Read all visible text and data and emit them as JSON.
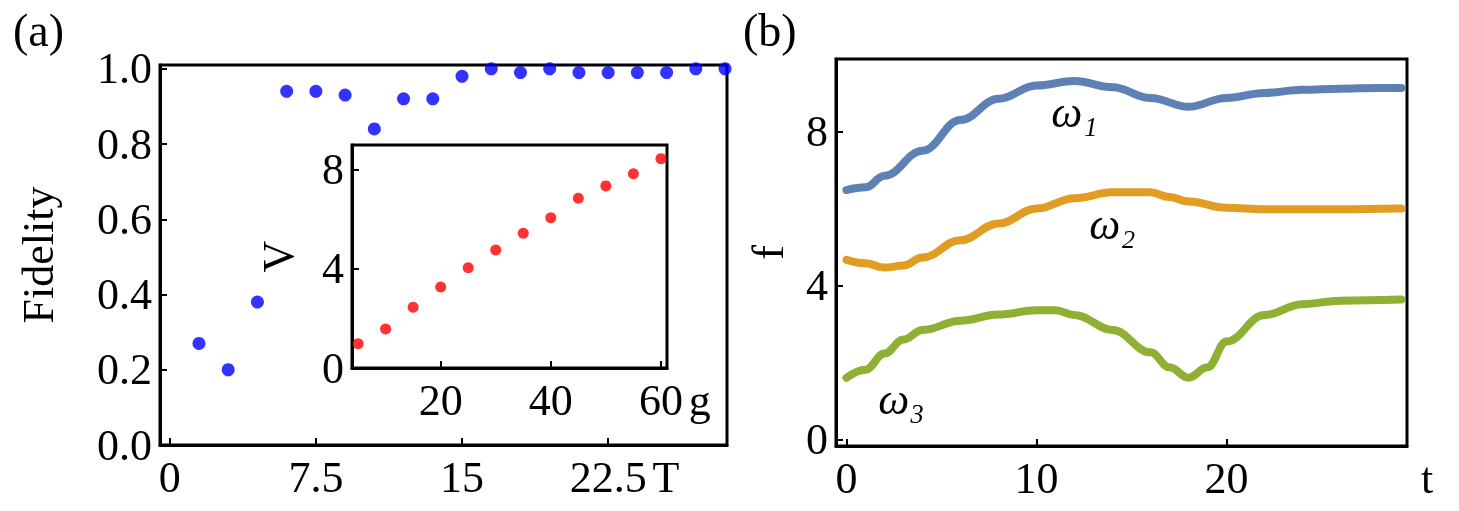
{
  "chart_data": [
    {
      "type": "scatter",
      "title": "(a)",
      "ylabel": "Fidelity",
      "xlabel": "T",
      "xlim": [
        -0.5,
        28.6
      ],
      "ylim": [
        0,
        1.01
      ],
      "xticks": [
        0,
        7.5,
        15,
        22.5
      ],
      "yticks": [
        {
          "value": 0,
          "label": "0.0"
        },
        0.2,
        0.4,
        0.6,
        0.8,
        {
          "value": 1,
          "label": "1.0"
        }
      ],
      "grid": false,
      "legend": false,
      "marker": "circle",
      "series": [
        {
          "color": "#0000ff",
          "x": [
            1.5,
            3,
            4.5,
            6,
            7.5,
            9,
            10.5,
            12,
            13.5,
            15,
            16.5,
            18,
            19.5,
            21,
            22.5,
            24,
            25.5,
            27,
            28.5
          ],
          "values": [
            0.27,
            0.2,
            0.38,
            0.94,
            0.94,
            0.93,
            0.84,
            0.92,
            0.92,
            0.98,
            1.0,
            0.99,
            1.0,
            0.99,
            0.99,
            0.99,
            0.99,
            1.0,
            1.0
          ]
        }
      ]
    },
    {
      "type": "scatter",
      "ylabel": "V",
      "xlabel": "g",
      "xlim": [
        3.9,
        61.1
      ],
      "ylim": [
        0,
        9
      ],
      "xticks": [
        20,
        40,
        60
      ],
      "yticks": [
        0,
        4,
        8
      ],
      "grid": false,
      "legend": false,
      "marker": "circle",
      "series": [
        {
          "color": "#ff0000",
          "x": [
            5,
            10,
            15,
            20,
            25,
            30,
            35,
            40,
            45,
            50,
            55,
            60
          ],
          "values": [
            0.98,
            1.57,
            2.45,
            3.27,
            4.05,
            4.76,
            5.44,
            6.06,
            6.85,
            7.35,
            7.84,
            8.45
          ]
        }
      ]
    },
    {
      "type": "line",
      "title": "(b)",
      "ylabel": "f",
      "xlabel": "t",
      "xlim": [
        -0.55,
        29.5
      ],
      "ylim": [
        -0.16,
        9.88
      ],
      "xticks": [
        0,
        10,
        20
      ],
      "yticks": [
        0,
        4,
        8
      ],
      "grid": false,
      "legend": false,
      "marker": "none",
      "line_style": "solid",
      "series": [
        {
          "name": "ω₁",
          "color": "#5e81b5",
          "x": [
            0,
            1,
            2,
            4,
            6,
            8,
            10,
            12,
            14,
            16,
            18,
            20,
            22,
            24,
            26,
            28,
            29.2
          ],
          "values": [
            6.48,
            6.55,
            6.85,
            7.5,
            8.3,
            8.85,
            9.19,
            9.31,
            9.15,
            8.87,
            8.64,
            8.87,
            9.0,
            9.08,
            9.11,
            9.13,
            9.13
          ]
        },
        {
          "name": "ω₂",
          "color": "#e19c24",
          "x": [
            0,
            1,
            2,
            3,
            4,
            6,
            8,
            10,
            12,
            14,
            16,
            17,
            18,
            20,
            22,
            24,
            26,
            29.2
          ],
          "values": [
            4.67,
            4.58,
            4.47,
            4.52,
            4.73,
            5.18,
            5.61,
            6.0,
            6.27,
            6.42,
            6.42,
            6.3,
            6.18,
            6.02,
            5.98,
            5.98,
            5.98,
            6.0
          ]
        },
        {
          "name": "ω₃",
          "color": "#8fb032",
          "x": [
            0,
            1,
            2,
            3,
            4,
            6,
            8,
            10,
            11,
            12,
            14,
            16,
            17,
            18,
            19,
            20,
            22,
            24,
            26,
            29.2
          ],
          "values": [
            1.61,
            1.82,
            2.24,
            2.6,
            2.85,
            3.09,
            3.25,
            3.36,
            3.36,
            3.24,
            2.85,
            2.27,
            1.88,
            1.61,
            1.88,
            2.55,
            3.24,
            3.52,
            3.61,
            3.64
          ]
        }
      ]
    }
  ]
}
